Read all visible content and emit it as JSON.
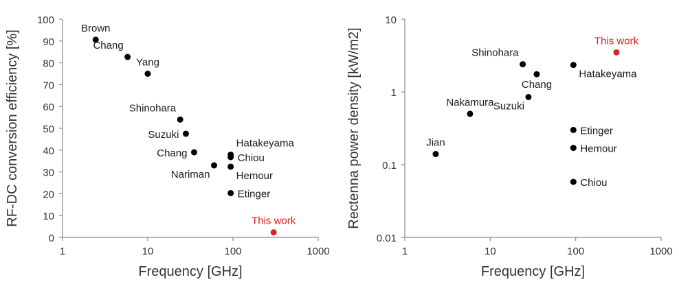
{
  "chart_data": [
    {
      "type": "scatter",
      "xscale": "log",
      "yscale": "linear",
      "xlim": [
        1,
        1000
      ],
      "ylim": [
        0,
        100
      ],
      "xticks": [
        1,
        10,
        100,
        1000
      ],
      "yticks": [
        0,
        10,
        20,
        30,
        40,
        50,
        60,
        70,
        80,
        90,
        100
      ],
      "xtick_labels": [
        "1",
        "10",
        "100",
        "1000"
      ],
      "ytick_labels": [
        "0",
        "10",
        "20",
        "30",
        "40",
        "50",
        "60",
        "70",
        "80",
        "90",
        "100"
      ],
      "xlabel": "Frequency [GHz]",
      "ylabel": "RF-DC conversion efficiency [%]",
      "grid": false,
      "colors": {
        "default": "#000000",
        "highlight": "#e02020"
      },
      "points": [
        {
          "label": "Brown",
          "x": 2.45,
          "y": 90.6,
          "label_pos": "above"
        },
        {
          "label": "Chang",
          "x": 5.8,
          "y": 82.7,
          "label_pos": "above-left"
        },
        {
          "label": "Yang",
          "x": 10,
          "y": 75,
          "label_pos": "above"
        },
        {
          "label": "Shinohara",
          "x": 24,
          "y": 54,
          "label_pos": "above-left"
        },
        {
          "label": "Suzuki",
          "x": 28,
          "y": 47.5,
          "label_pos": "left"
        },
        {
          "label": "Chang",
          "x": 35,
          "y": 39,
          "label_pos": "left"
        },
        {
          "label": "Nariman",
          "x": 60,
          "y": 33,
          "label_pos": "below-left"
        },
        {
          "label": "Hatakeyama",
          "x": 94,
          "y": 37.9,
          "label_pos": "above-right"
        },
        {
          "label": "Chiou",
          "x": 94,
          "y": 36.8,
          "label_pos": "right"
        },
        {
          "label": "Hemour",
          "x": 94,
          "y": 32.4,
          "label_pos": "below-right"
        },
        {
          "label": "Etinger",
          "x": 94,
          "y": 20.3,
          "label_pos": "right"
        },
        {
          "label": "This work",
          "x": 300,
          "y": 2.3,
          "label_pos": "above",
          "highlight": true
        }
      ]
    },
    {
      "type": "scatter",
      "xscale": "log",
      "yscale": "log",
      "xlim": [
        1,
        1000
      ],
      "ylim": [
        0.01,
        10
      ],
      "xticks": [
        1,
        10,
        100,
        1000
      ],
      "yticks": [
        0.01,
        0.1,
        1,
        10
      ],
      "xtick_labels": [
        "1",
        "10",
        "100",
        "1000"
      ],
      "ytick_labels": [
        "0.01",
        "0.1",
        "1",
        "10"
      ],
      "xlabel": "Frequency [GHz]",
      "ylabel": "Rectenna power density  [kW/m2]",
      "grid": false,
      "colors": {
        "default": "#000000",
        "highlight": "#e02020"
      },
      "points": [
        {
          "label": "Jian",
          "x": 2.3,
          "y": 0.14,
          "label_pos": "above"
        },
        {
          "label": "Nakamura",
          "x": 5.8,
          "y": 0.5,
          "label_pos": "above"
        },
        {
          "label": "Shinohara",
          "x": 24,
          "y": 2.4,
          "label_pos": "above-left"
        },
        {
          "label": "Chang",
          "x": 35,
          "y": 1.75,
          "label_pos": "below"
        },
        {
          "label": "Suzuki",
          "x": 28,
          "y": 0.85,
          "label_pos": "below-left"
        },
        {
          "label": "Hatakeyama",
          "x": 94,
          "y": 2.35,
          "label_pos": "below-right"
        },
        {
          "label": "Etinger",
          "x": 94,
          "y": 0.3,
          "label_pos": "right"
        },
        {
          "label": "Hemour",
          "x": 94,
          "y": 0.17,
          "label_pos": "right"
        },
        {
          "label": "Chiou",
          "x": 94,
          "y": 0.058,
          "label_pos": "right"
        },
        {
          "label": "This work",
          "x": 300,
          "y": 3.5,
          "label_pos": "above",
          "highlight": true
        }
      ]
    }
  ]
}
